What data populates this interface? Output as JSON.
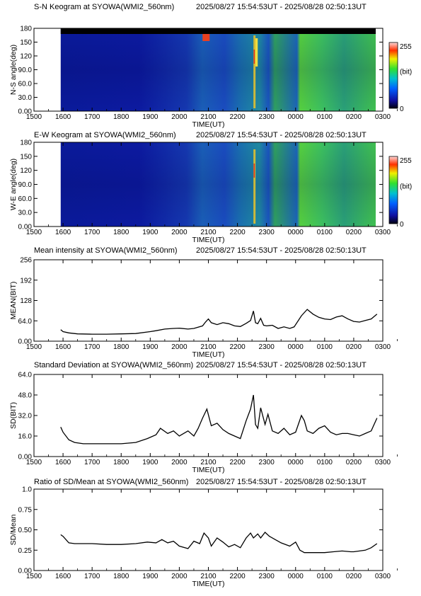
{
  "colors": {
    "axis": "#000000",
    "line": "#000000",
    "background": "#ffffff",
    "keogram_low": "#0a1590",
    "keogram_mid": "#2a8f60",
    "keogram_high": "#d0301c"
  },
  "x_axis": {
    "label": "TIME(UT)",
    "ticks": [
      "1500",
      "1600",
      "1700",
      "1800",
      "1900",
      "2000",
      "2100",
      "2200",
      "2300",
      "0000",
      "0100",
      "0200",
      "0300"
    ]
  },
  "colorbar": {
    "max_label": "255",
    "unit_label": "(bit)",
    "min_label": "0"
  },
  "chart_data": [
    {
      "type": "heatmap",
      "title": "S-N Keogram at SYOWA(WMI2_560nm)",
      "subtitle": "2025/08/27 15:54:53UT - 2025/08/28 02:50:13UT",
      "ylabel": "N-S angle(deg)",
      "xlabel": "TIME(UT)",
      "yticks": [
        "0.00",
        "30.0",
        "60.0",
        "90.0",
        "120",
        "150",
        "180"
      ],
      "ylim": [
        0,
        180
      ],
      "color_scale": [
        0,
        255
      ]
    },
    {
      "type": "heatmap",
      "title": "E-W Keogram at SYOWA(WMI2_560nm)",
      "subtitle": "2025/08/27 15:54:53UT - 2025/08/28 02:50:13UT",
      "ylabel": "W-E angle(deg)",
      "xlabel": "TIME(UT)",
      "yticks": [
        "0.00",
        "30.0",
        "60.0",
        "90.0",
        "120",
        "150",
        "180"
      ],
      "ylim": [
        0,
        180
      ],
      "color_scale": [
        0,
        255
      ]
    },
    {
      "type": "line",
      "title": "Mean intensity at SYOWA(WMI2_560nm)",
      "subtitle": "2025/08/27 15:54:53UT - 2025/08/28 02:50:13UT",
      "ylabel": "MEAN(BIT)",
      "xlabel": "TIME(UT)",
      "yticks": [
        "0.00",
        "64.0",
        "128",
        "192",
        "256"
      ],
      "ylim": [
        0,
        256
      ],
      "x": [
        15.92,
        16.0,
        16.2,
        16.5,
        17.0,
        17.5,
        18.0,
        18.5,
        19.0,
        19.2,
        19.5,
        19.8,
        20.0,
        20.3,
        20.5,
        20.8,
        20.9,
        21.0,
        21.1,
        21.3,
        21.5,
        21.7,
        21.9,
        22.1,
        22.3,
        22.45,
        22.55,
        22.62,
        22.7,
        22.8,
        22.9,
        23.0,
        23.2,
        23.4,
        23.6,
        23.8,
        23.95,
        24.2,
        24.4,
        24.6,
        24.8,
        25.0,
        25.2,
        25.4,
        25.6,
        25.8,
        26.0,
        26.2,
        26.4,
        26.6,
        26.8
      ],
      "y": [
        36,
        30,
        26,
        23,
        22,
        22,
        23,
        24,
        30,
        33,
        38,
        40,
        41,
        38,
        40,
        48,
        60,
        70,
        58,
        52,
        58,
        55,
        48,
        46,
        56,
        65,
        95,
        58,
        55,
        72,
        50,
        48,
        50,
        40,
        45,
        40,
        45,
        80,
        100,
        85,
        75,
        70,
        68,
        76,
        80,
        70,
        62,
        60,
        65,
        70,
        85
      ]
    },
    {
      "type": "line",
      "title": "Standard Deviation at SYOWA(WMI2_560nm)",
      "subtitle": "2025/08/27 15:54:53UT - 2025/08/28 02:50:13UT",
      "ylabel": "SD(BIT)",
      "xlabel": "TIME(UT)",
      "yticks": [
        "0.00",
        "16.0",
        "32.0",
        "48.0",
        "64.0"
      ],
      "ylim": [
        0,
        64
      ],
      "x": [
        15.92,
        16.0,
        16.2,
        16.4,
        16.7,
        17.0,
        17.5,
        18.0,
        18.5,
        18.9,
        19.2,
        19.35,
        19.6,
        19.8,
        20.0,
        20.3,
        20.5,
        20.65,
        20.8,
        20.95,
        21.1,
        21.3,
        21.5,
        21.7,
        21.9,
        22.1,
        22.3,
        22.45,
        22.55,
        22.62,
        22.7,
        22.8,
        22.95,
        23.05,
        23.2,
        23.4,
        23.6,
        23.8,
        24.0,
        24.2,
        24.3,
        24.4,
        24.6,
        24.8,
        25.0,
        25.2,
        25.4,
        25.6,
        25.8,
        26.0,
        26.2,
        26.4,
        26.6,
        26.8
      ],
      "y": [
        23,
        19,
        13,
        11,
        10,
        10,
        10,
        10,
        11,
        14,
        17,
        22,
        18,
        20,
        16,
        20,
        16,
        22,
        30,
        37,
        24,
        26,
        21,
        18,
        16,
        14,
        28,
        37,
        48,
        25,
        22,
        38,
        25,
        33,
        20,
        18,
        22,
        17,
        19,
        32,
        28,
        20,
        18,
        22,
        24,
        19,
        17,
        18,
        18,
        17,
        16,
        18,
        20,
        30
      ]
    },
    {
      "type": "line",
      "title": "Ratio of SD/Mean at SYOWA(WMI2_560nm)",
      "subtitle": "2025/08/27 15:54:53UT - 2025/08/28 02:50:13UT",
      "ylabel": "SD/Mean",
      "xlabel": "TIME(UT)",
      "yticks": [
        "0.00",
        "0.25",
        "0.50",
        "0.75",
        "1.0"
      ],
      "ylim": [
        0,
        1
      ],
      "x": [
        15.92,
        16.0,
        16.2,
        16.4,
        16.7,
        17.0,
        17.5,
        18.0,
        18.5,
        18.9,
        19.2,
        19.4,
        19.6,
        19.8,
        20.0,
        20.3,
        20.5,
        20.7,
        20.85,
        21.0,
        21.1,
        21.3,
        21.5,
        21.7,
        21.9,
        22.1,
        22.3,
        22.45,
        22.55,
        22.7,
        22.8,
        22.95,
        23.1,
        23.3,
        23.5,
        23.8,
        24.0,
        24.15,
        24.3,
        24.5,
        24.8,
        25.0,
        25.3,
        25.6,
        25.9,
        26.0,
        26.2,
        26.4,
        26.6,
        26.8
      ],
      "y": [
        0.44,
        0.42,
        0.34,
        0.33,
        0.33,
        0.33,
        0.32,
        0.32,
        0.33,
        0.35,
        0.34,
        0.38,
        0.34,
        0.36,
        0.3,
        0.27,
        0.36,
        0.33,
        0.46,
        0.4,
        0.3,
        0.4,
        0.35,
        0.29,
        0.32,
        0.28,
        0.4,
        0.46,
        0.4,
        0.45,
        0.4,
        0.47,
        0.42,
        0.38,
        0.34,
        0.3,
        0.35,
        0.25,
        0.22,
        0.22,
        0.22,
        0.22,
        0.23,
        0.24,
        0.23,
        0.23,
        0.24,
        0.25,
        0.28,
        0.33
      ]
    }
  ]
}
